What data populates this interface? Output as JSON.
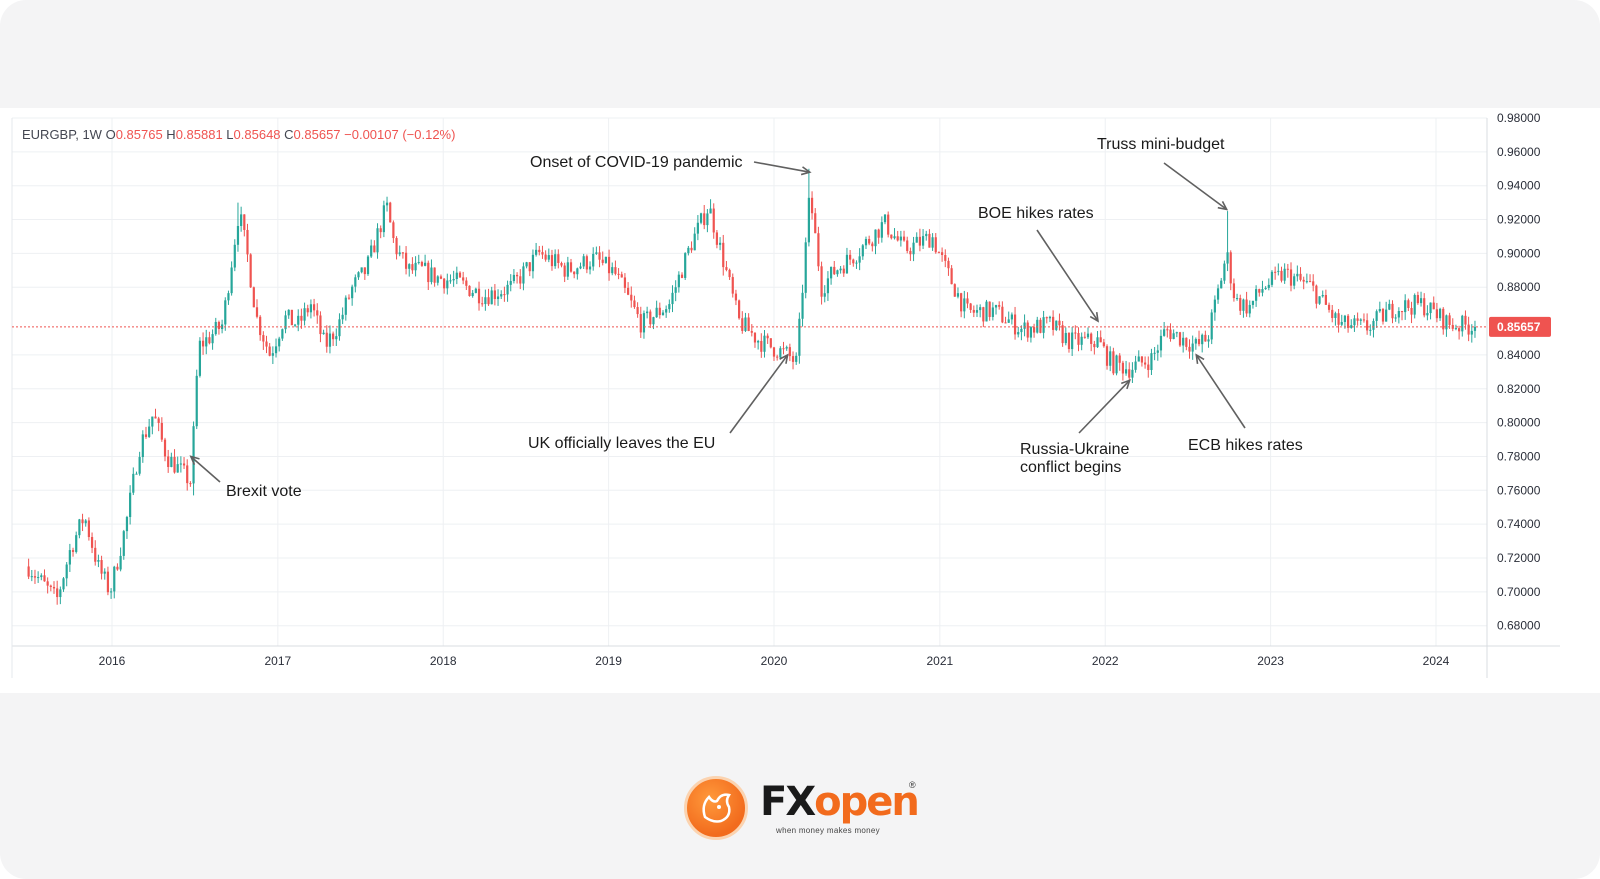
{
  "chart_data": {
    "type": "candlestick",
    "symbol": "EURGBP",
    "timeframe": "1W",
    "ohlc": {
      "open_label": "O",
      "open": "0.85765",
      "high_label": "H",
      "high": "0.85881",
      "low_label": "L",
      "low": "0.85648",
      "close_label": "C",
      "close": "0.85657",
      "change": "−0.00107 (−0.12%)"
    },
    "last_price_label": "0.85657",
    "last_price": 0.85657,
    "ylim": [
      0.668,
      0.98
    ],
    "y_ticks": [
      "0.98000",
      "0.96000",
      "0.94000",
      "0.92000",
      "0.90000",
      "0.88000",
      "0.84000",
      "0.82000",
      "0.80000",
      "0.78000",
      "0.76000",
      "0.74000",
      "0.72000",
      "0.70000",
      "0.68000"
    ],
    "x_ticks": [
      "2016",
      "2017",
      "2018",
      "2019",
      "2020",
      "2021",
      "2022",
      "2023",
      "2024"
    ],
    "price_path": [
      [
        "2015-07-01",
        0.715
      ],
      [
        "2015-08-01",
        0.705
      ],
      [
        "2015-09-01",
        0.695
      ],
      [
        "2015-10-01",
        0.725
      ],
      [
        "2015-11-01",
        0.745
      ],
      [
        "2015-12-01",
        0.715
      ],
      [
        "2015-12-28",
        0.7
      ],
      [
        "2016-02-01",
        0.74
      ],
      [
        "2016-03-01",
        0.785
      ],
      [
        "2016-04-01",
        0.805
      ],
      [
        "2016-05-01",
        0.78
      ],
      [
        "2016-06-23",
        0.765
      ],
      [
        "2016-07-10",
        0.845
      ],
      [
        "2016-08-01",
        0.85
      ],
      [
        "2016-09-01",
        0.858
      ],
      [
        "2016-10-07",
        0.925
      ],
      [
        "2016-10-25",
        0.9
      ],
      [
        "2016-11-15",
        0.862
      ],
      [
        "2016-12-15",
        0.84
      ],
      [
        "2017-01-15",
        0.862
      ],
      [
        "2017-02-15",
        0.858
      ],
      [
        "2017-03-15",
        0.87
      ],
      [
        "2017-04-15",
        0.845
      ],
      [
        "2017-05-15",
        0.858
      ],
      [
        "2017-06-15",
        0.88
      ],
      [
        "2017-07-15",
        0.89
      ],
      [
        "2017-08-29",
        0.928
      ],
      [
        "2017-09-15",
        0.905
      ],
      [
        "2017-10-15",
        0.89
      ],
      [
        "2017-11-15",
        0.89
      ],
      [
        "2017-12-15",
        0.886
      ],
      [
        "2018-02-01",
        0.883
      ],
      [
        "2018-04-01",
        0.875
      ],
      [
        "2018-06-01",
        0.88
      ],
      [
        "2018-08-01",
        0.9
      ],
      [
        "2018-10-01",
        0.89
      ],
      [
        "2018-12-01",
        0.897
      ],
      [
        "2019-01-15",
        0.888
      ],
      [
        "2019-03-15",
        0.858
      ],
      [
        "2019-05-15",
        0.87
      ],
      [
        "2019-07-01",
        0.905
      ],
      [
        "2019-08-10",
        0.928
      ],
      [
        "2019-09-15",
        0.892
      ],
      [
        "2019-10-15",
        0.86
      ],
      [
        "2019-12-01",
        0.848
      ],
      [
        "2020-01-31",
        0.84
      ],
      [
        "2020-02-20",
        0.835
      ],
      [
        "2020-03-20",
        0.935
      ],
      [
        "2020-04-15",
        0.88
      ],
      [
        "2020-05-15",
        0.89
      ],
      [
        "2020-07-01",
        0.9
      ],
      [
        "2020-09-01",
        0.918
      ],
      [
        "2020-10-15",
        0.902
      ],
      [
        "2020-12-15",
        0.91
      ],
      [
        "2021-01-15",
        0.89
      ],
      [
        "2021-03-01",
        0.865
      ],
      [
        "2021-05-01",
        0.866
      ],
      [
        "2021-07-01",
        0.855
      ],
      [
        "2021-09-01",
        0.858
      ],
      [
        "2021-10-15",
        0.848
      ],
      [
        "2021-12-16",
        0.848
      ],
      [
        "2022-01-15",
        0.835
      ],
      [
        "2022-02-24",
        0.832
      ],
      [
        "2022-04-15",
        0.838
      ],
      [
        "2022-05-15",
        0.855
      ],
      [
        "2022-07-21",
        0.845
      ],
      [
        "2022-08-15",
        0.85
      ],
      [
        "2022-09-26",
        0.9
      ],
      [
        "2022-10-15",
        0.872
      ],
      [
        "2022-11-15",
        0.868
      ],
      [
        "2022-12-15",
        0.88
      ],
      [
        "2023-02-01",
        0.888
      ],
      [
        "2023-04-01",
        0.88
      ],
      [
        "2023-06-01",
        0.858
      ],
      [
        "2023-08-01",
        0.856
      ],
      [
        "2023-10-01",
        0.868
      ],
      [
        "2023-12-01",
        0.87
      ],
      [
        "2024-02-01",
        0.858
      ],
      [
        "2024-04-01",
        0.8566
      ]
    ],
    "annotations": [
      {
        "date": "2016-06-23",
        "price": 0.78,
        "text_lines": [
          "Brexit vote"
        ]
      },
      {
        "date": "2020-01-31",
        "price": 0.84,
        "text_lines": [
          "UK officially leaves the EU"
        ]
      },
      {
        "date": "2020-03-20",
        "price": 0.948,
        "text_lines": [
          "Onset of COVID-19 pandemic"
        ]
      },
      {
        "date": "2021-12-16",
        "price": 0.86,
        "text_lines": [
          "BOE hikes rates"
        ]
      },
      {
        "date": "2022-02-24",
        "price": 0.825,
        "text_lines": [
          "Russia-Ukraine",
          "conflict begins"
        ]
      },
      {
        "date": "2022-07-21",
        "price": 0.84,
        "text_lines": [
          "ECB hikes rates"
        ]
      },
      {
        "date": "2022-09-26",
        "price": 0.926,
        "text_lines": [
          "Truss mini-budget"
        ]
      }
    ]
  },
  "colors": {
    "up": "#26a69a",
    "down": "#ef5350",
    "grid": "#eef0f3",
    "axis_text": "#2a2e39",
    "annotation_arrow": "#606060",
    "brand": "#f26b1d"
  },
  "brand": {
    "fx": "FX",
    "open": "open",
    "registered": "®",
    "tagline": "when money makes money"
  }
}
